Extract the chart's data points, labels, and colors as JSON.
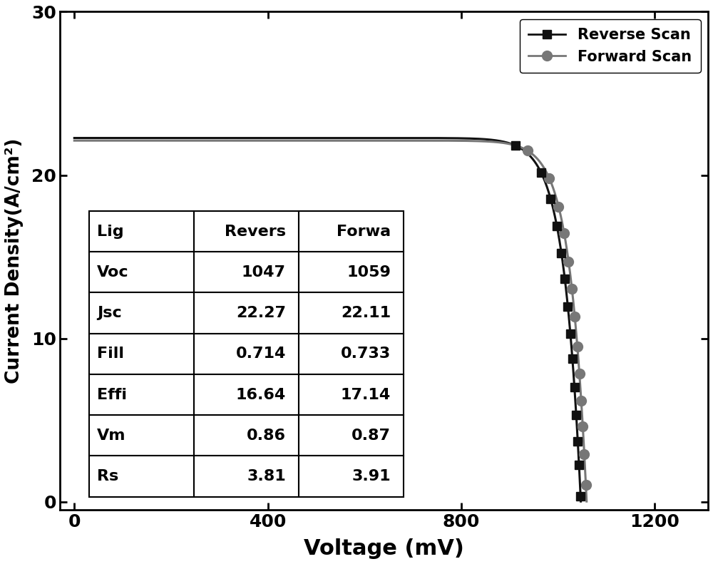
{
  "title": "",
  "xlabel": "Voltage (mV)",
  "ylabel": "Current Density(A/cm²)",
  "xlim": [
    -30,
    1310
  ],
  "ylim": [
    -0.5,
    30
  ],
  "xticks": [
    0,
    400,
    800,
    1200
  ],
  "yticks": [
    0,
    10,
    20,
    30
  ],
  "reverse_scan": {
    "Voc": 1047,
    "Jsc": 22.27,
    "FF": 0.714,
    "PCE": 16.64,
    "Vm": 860,
    "Rs": 3.81,
    "color": "#111111",
    "marker": "s",
    "marker_color": "#111111",
    "line_style": "-",
    "label": "Reverse Scan",
    "n_ideality": 1.35
  },
  "forward_scan": {
    "Voc": 1059,
    "Jsc": 22.11,
    "FF": 0.733,
    "PCE": 17.14,
    "Vm": 870,
    "Rs": 3.91,
    "color": "#777777",
    "marker": "o",
    "marker_color": "#777777",
    "line_style": "-",
    "label": "Forward Scan",
    "n_ideality": 1.32
  },
  "table_data": {
    "headers": [
      "Lig",
      "Revers",
      "Forwa"
    ],
    "rows": [
      [
        "Voc",
        "1047",
        "1059"
      ],
      [
        "Jsc",
        "22.27",
        "22.11"
      ],
      [
        "Fill",
        "0.714",
        "0.733"
      ],
      [
        "Effi",
        "16.64",
        "17.14"
      ],
      [
        "Vm",
        "0.86",
        "0.87"
      ],
      [
        "Rs",
        "3.81",
        "3.91"
      ]
    ]
  },
  "legend_loc": "upper right",
  "figsize": [
    10.0,
    7.91
  ],
  "dpi": 100
}
